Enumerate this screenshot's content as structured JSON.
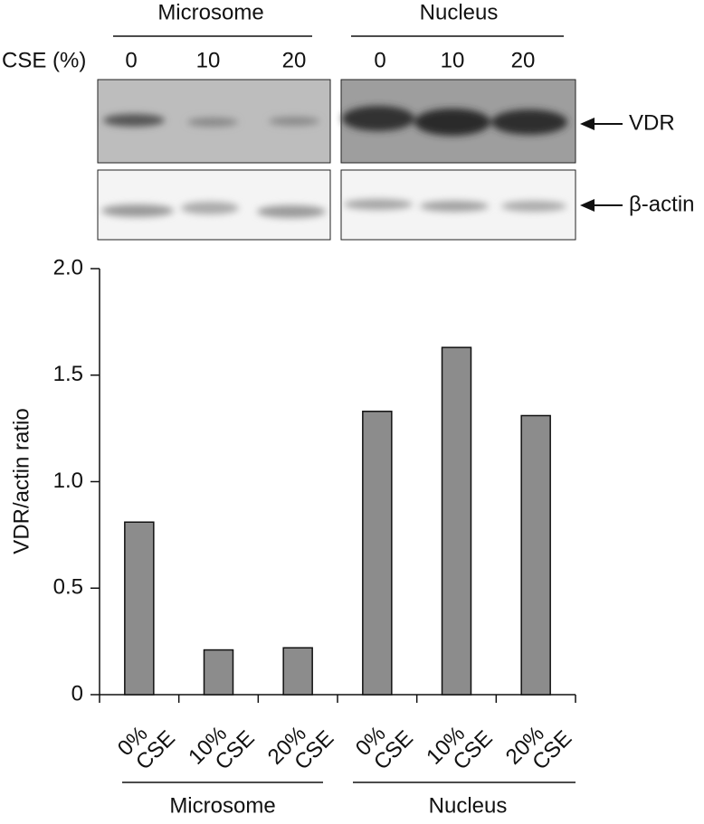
{
  "blot": {
    "condition_label": "CSE (%)",
    "groups": [
      "Microsome",
      "Nucleus"
    ],
    "lanes": [
      "0",
      "10",
      "20"
    ],
    "bands": [
      "VDR",
      "β-actin"
    ]
  },
  "chart_data": {
    "type": "bar",
    "ylabel": "VDR/actin ratio",
    "categories": [
      [
        "0%",
        "CSE"
      ],
      [
        "10%",
        "CSE"
      ],
      [
        "20%",
        "CSE"
      ],
      [
        "0%",
        "CSE"
      ],
      [
        "10%",
        "CSE"
      ],
      [
        "20%",
        "CSE"
      ]
    ],
    "groups": [
      "Microsome",
      "Nucleus"
    ],
    "values": [
      0.81,
      0.21,
      0.22,
      1.33,
      1.63,
      1.31
    ],
    "color": "#8c8c8c",
    "ylim": [
      0,
      2
    ],
    "yticks": [
      0,
      0.5,
      {
        "value": 1,
        "label": "1.0"
      },
      1.5,
      {
        "value": 2,
        "label": "2.0"
      }
    ]
  }
}
